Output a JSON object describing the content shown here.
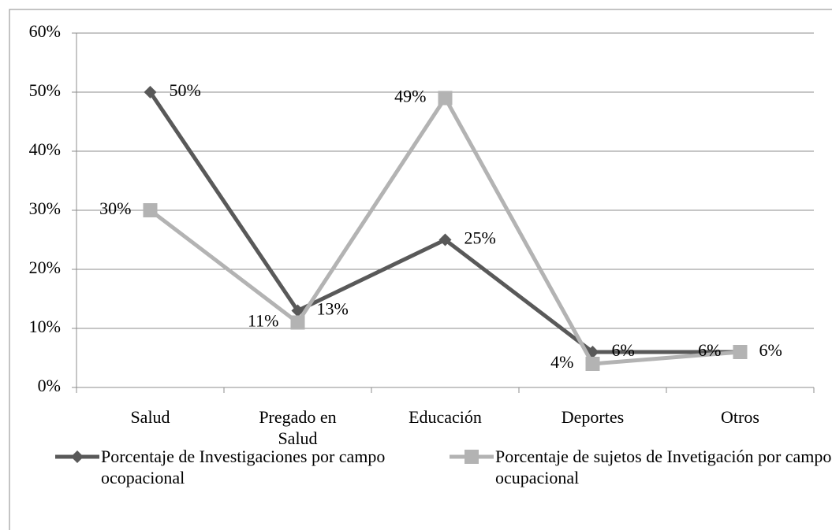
{
  "chart_data": {
    "type": "line",
    "categories": [
      "Salud",
      "Pregado en Salud",
      "Educación",
      "Deportes",
      "Otros"
    ],
    "series": [
      {
        "name": "Porcentaje de Investigaciones por campo ocopacional",
        "color": "#595959",
        "marker": "diamond",
        "values": [
          50,
          13,
          25,
          6,
          6
        ],
        "value_labels": [
          "50%",
          "13%",
          "25%",
          "6%",
          "6%"
        ]
      },
      {
        "name": "Porcentaje de sujetos de Invetigación por campo ocupacional",
        "color": "#b3b3b3",
        "marker": "square",
        "values": [
          30,
          11,
          49,
          4,
          6
        ],
        "value_labels": [
          "30%",
          "11%",
          "49%",
          "4%",
          "6%"
        ]
      }
    ],
    "ylim": [
      0,
      60
    ],
    "yticks": [
      {
        "value": 0,
        "label": "0%"
      },
      {
        "value": 10,
        "label": "10%"
      },
      {
        "value": 20,
        "label": "20%"
      },
      {
        "value": 30,
        "label": "30%"
      },
      {
        "value": 40,
        "label": "40%"
      },
      {
        "value": 50,
        "label": "50%"
      },
      {
        "value": 60,
        "label": "60%"
      }
    ],
    "grid": true,
    "legend": "bottom"
  }
}
